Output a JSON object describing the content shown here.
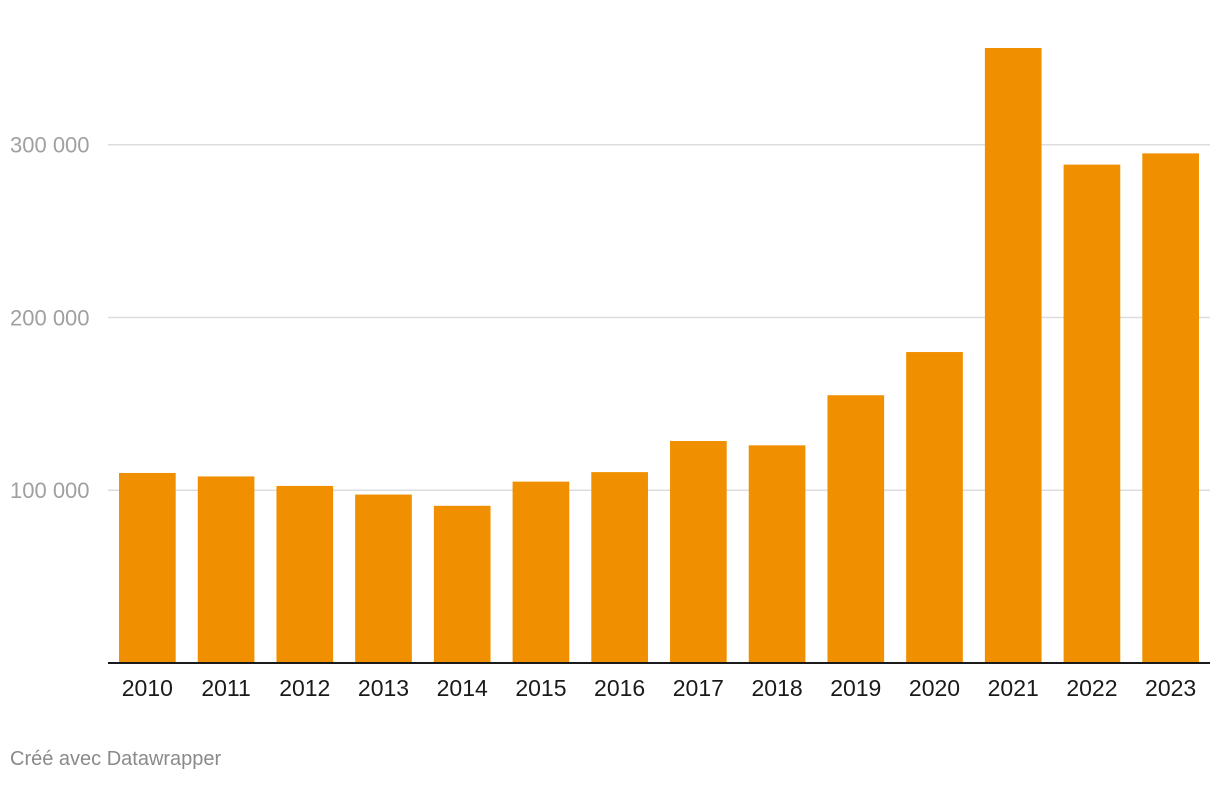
{
  "chart_data": {
    "type": "bar",
    "title": "",
    "xlabel": "",
    "ylabel": "",
    "categories": [
      "2010",
      "2011",
      "2012",
      "2013",
      "2014",
      "2015",
      "2016",
      "2017",
      "2018",
      "2019",
      "2020",
      "2021",
      "2022",
      "2023"
    ],
    "values": [
      110000,
      108000,
      102500,
      97500,
      91000,
      105000,
      110500,
      128500,
      126000,
      155000,
      180000,
      356000,
      288500,
      295000
    ],
    "ylim": [
      0,
      356000
    ],
    "yticks": [
      100000,
      200000,
      300000
    ],
    "ytick_labels": [
      "100 000",
      "200 000",
      "300 000"
    ],
    "grid": true,
    "bar_color": "#f09000"
  },
  "footer": {
    "credit": "Créé avec Datawrapper"
  }
}
